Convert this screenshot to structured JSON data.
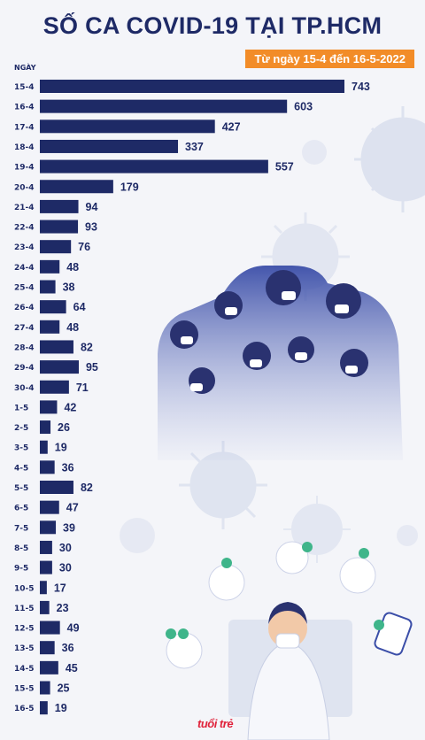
{
  "header": {
    "title": "SỐ CA COVID-19 TẠI TP.HCM",
    "subtitle": "Từ ngày 15-4 đến 16-5-2022"
  },
  "logo_text": "tuổi trẻ",
  "colors": {
    "bar": "#1e2a66",
    "title": "#1e2a66",
    "badge": "#f28c28",
    "background": "#f4f5f9"
  },
  "chart_data": {
    "type": "bar",
    "orientation": "horizontal",
    "ylabel": "NGÀY",
    "categories": [
      "15-4",
      "16-4",
      "17-4",
      "18-4",
      "19-4",
      "20-4",
      "21-4",
      "22-4",
      "23-4",
      "24-4",
      "25-4",
      "26-4",
      "27-4",
      "28-4",
      "29-4",
      "30-4",
      "1-5",
      "2-5",
      "3-5",
      "4-5",
      "5-5",
      "6-5",
      "7-5",
      "8-5",
      "9-5",
      "10-5",
      "11-5",
      "12-5",
      "13-5",
      "14-5",
      "15-5",
      "16-5"
    ],
    "values": [
      743,
      603,
      427,
      337,
      557,
      179,
      94,
      93,
      76,
      48,
      38,
      64,
      48,
      82,
      95,
      71,
      42,
      26,
      19,
      36,
      82,
      47,
      39,
      30,
      30,
      17,
      23,
      49,
      36,
      45,
      25,
      19
    ],
    "xlim": [
      0,
      743
    ]
  }
}
